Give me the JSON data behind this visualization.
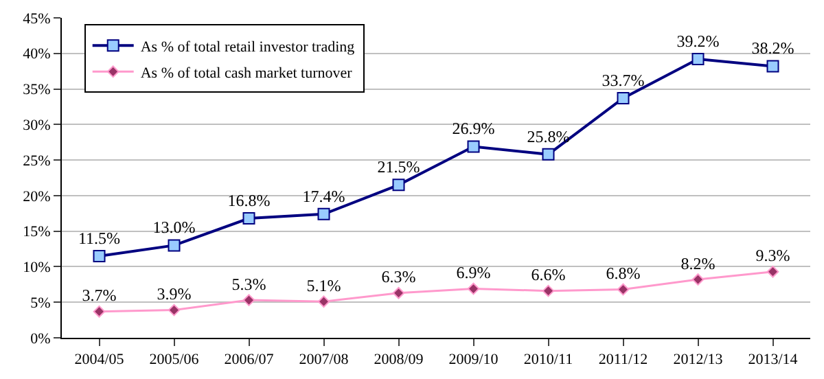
{
  "chart_data": {
    "type": "line",
    "categories": [
      "2004/05",
      "2005/06",
      "2006/07",
      "2007/08",
      "2008/09",
      "2009/10",
      "2010/11",
      "2011/12",
      "2012/13",
      "2013/14"
    ],
    "series": [
      {
        "name": "As % of total retail investor trading",
        "color": "#000080",
        "marker": "square",
        "values": [
          11.5,
          13.0,
          16.8,
          17.4,
          21.5,
          26.9,
          25.8,
          33.7,
          39.2,
          38.2
        ],
        "value_labels": [
          "11.5%",
          "13.0%",
          "16.8%",
          "17.4%",
          "21.5%",
          "26.9%",
          "25.8%",
          "33.7%",
          "39.2%",
          "38.2%"
        ]
      },
      {
        "name": "As % of total cash market turnover",
        "color": "#ff99cc",
        "marker": "diamond",
        "values": [
          3.7,
          3.9,
          5.3,
          5.1,
          6.3,
          6.9,
          6.6,
          6.8,
          8.2,
          9.3
        ],
        "value_labels": [
          "3.7%",
          "3.9%",
          "5.3%",
          "5.1%",
          "6.3%",
          "6.9%",
          "6.6%",
          "6.8%",
          "8.2%",
          "9.3%"
        ]
      }
    ],
    "ylim": [
      0,
      45
    ],
    "yticks": [
      {
        "value": 0,
        "label": "0%"
      },
      {
        "value": 5,
        "label": "5%"
      },
      {
        "value": 10,
        "label": "10%"
      },
      {
        "value": 15,
        "label": "15%"
      },
      {
        "value": 20,
        "label": "20%"
      },
      {
        "value": 25,
        "label": "25%"
      },
      {
        "value": 30,
        "label": "30%"
      },
      {
        "value": 35,
        "label": "35%"
      },
      {
        "value": 40,
        "label": "40%"
      },
      {
        "value": 45,
        "label": "45%"
      }
    ],
    "grid": "y",
    "legend": "top left",
    "line_style": "solid"
  }
}
